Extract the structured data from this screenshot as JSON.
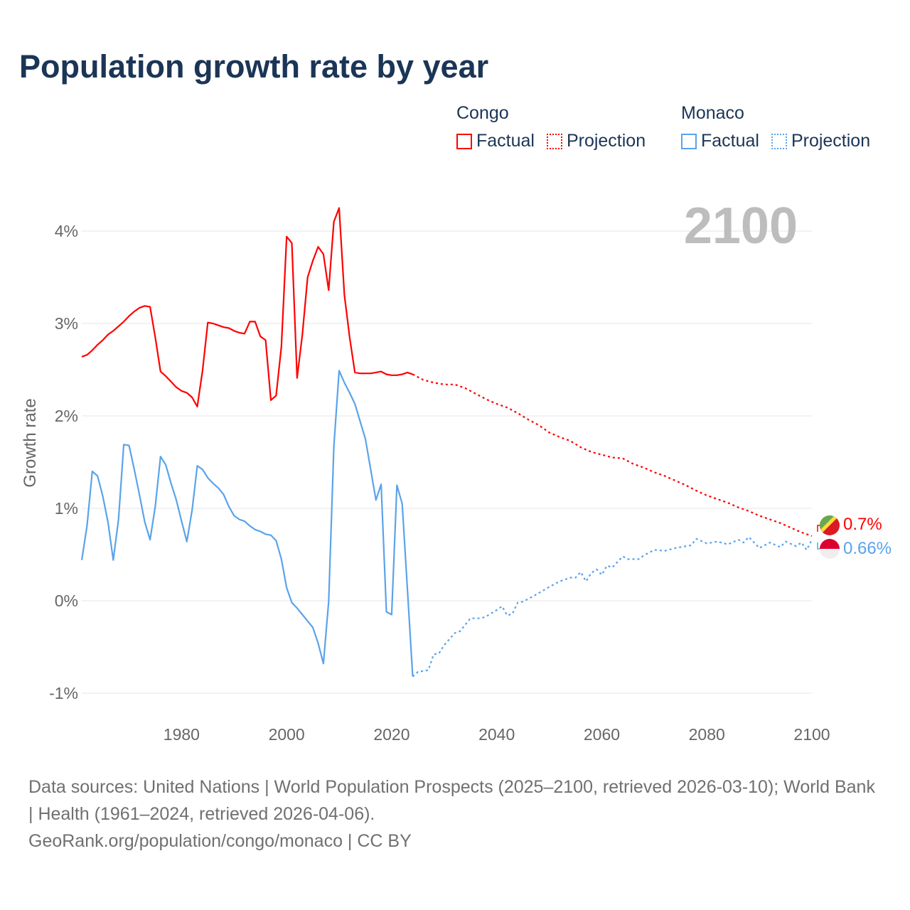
{
  "chart_data": {
    "type": "line",
    "title": "Population growth rate by year",
    "xlabel": "",
    "ylabel": "Growth rate",
    "xlim": [
      1961,
      2100
    ],
    "ylim": [
      -1,
      4.3
    ],
    "x_ticks": [
      "1980",
      "2000",
      "2020",
      "2040",
      "2060",
      "2080",
      "2100"
    ],
    "x_tick_values": [
      1980,
      2000,
      2020,
      2040,
      2060,
      2080,
      2100
    ],
    "y_ticks": [
      "-1%",
      "0%",
      "1%",
      "2%",
      "3%",
      "4%"
    ],
    "y_tick_values": [
      -1,
      0,
      1,
      2,
      3,
      4
    ],
    "grid": true,
    "legend_position": "top-right",
    "year_label": "2100",
    "series": [
      {
        "country": "Congo",
        "type": "Factual",
        "color": "#ff0000",
        "x": [
          1961,
          1962,
          1963,
          1964,
          1965,
          1966,
          1967,
          1968,
          1969,
          1970,
          1971,
          1972,
          1973,
          1974,
          1975,
          1976,
          1977,
          1978,
          1979,
          1980,
          1981,
          1982,
          1983,
          1984,
          1985,
          1986,
          1987,
          1988,
          1989,
          1990,
          1991,
          1992,
          1993,
          1994,
          1995,
          1996,
          1997,
          1998,
          1999,
          2000,
          2001,
          2002,
          2003,
          2004,
          2005,
          2006,
          2007,
          2008,
          2009,
          2010,
          2011,
          2012,
          2013,
          2014,
          2015,
          2016,
          2017,
          2018,
          2019,
          2020,
          2021,
          2022,
          2023,
          2024
        ],
        "y": [
          2.64,
          2.66,
          2.71,
          2.77,
          2.82,
          2.88,
          2.92,
          2.97,
          3.02,
          3.08,
          3.13,
          3.17,
          3.19,
          3.18,
          2.85,
          2.48,
          2.43,
          2.37,
          2.31,
          2.27,
          2.25,
          2.2,
          2.1,
          2.49,
          3.01,
          3.0,
          2.98,
          2.96,
          2.95,
          2.92,
          2.9,
          2.89,
          3.02,
          3.02,
          2.86,
          2.82,
          2.17,
          2.22,
          2.75,
          3.94,
          3.87,
          2.41,
          2.88,
          3.5,
          3.68,
          3.83,
          3.75,
          3.36,
          4.1,
          4.25,
          3.31,
          2.85,
          2.47,
          2.46,
          2.46,
          2.46,
          2.47,
          2.48,
          2.45,
          2.44,
          2.44,
          2.45,
          2.47,
          2.45
        ]
      },
      {
        "country": "Congo",
        "type": "Projection",
        "color": "#ff0000",
        "x": [
          2024,
          2026,
          2028,
          2030,
          2032,
          2034,
          2036,
          2038,
          2040,
          2042,
          2044,
          2046,
          2048,
          2050,
          2052,
          2054,
          2056,
          2058,
          2060,
          2062,
          2064,
          2066,
          2068,
          2070,
          2072,
          2074,
          2076,
          2078,
          2080,
          2082,
          2084,
          2086,
          2088,
          2090,
          2092,
          2094,
          2096,
          2098,
          2100
        ],
        "y": [
          2.45,
          2.39,
          2.36,
          2.34,
          2.34,
          2.3,
          2.24,
          2.18,
          2.13,
          2.09,
          2.03,
          1.96,
          1.9,
          1.82,
          1.77,
          1.73,
          1.66,
          1.61,
          1.58,
          1.55,
          1.54,
          1.48,
          1.44,
          1.39,
          1.35,
          1.3,
          1.25,
          1.19,
          1.14,
          1.1,
          1.06,
          1.01,
          0.97,
          0.92,
          0.88,
          0.84,
          0.79,
          0.74,
          0.7
        ]
      },
      {
        "country": "Monaco",
        "type": "Factual",
        "color": "#5aa3ea",
        "x": [
          1961,
          1962,
          1963,
          1964,
          1965,
          1966,
          1967,
          1968,
          1969,
          1970,
          1971,
          1972,
          1973,
          1974,
          1975,
          1976,
          1977,
          1978,
          1979,
          1980,
          1981,
          1982,
          1983,
          1984,
          1985,
          1986,
          1987,
          1988,
          1989,
          1990,
          1991,
          1992,
          1993,
          1994,
          1995,
          1996,
          1997,
          1998,
          1999,
          2000,
          2001,
          2002,
          2003,
          2004,
          2005,
          2006,
          2007,
          2008,
          2009,
          2010,
          2011,
          2012,
          2013,
          2014,
          2015,
          2016,
          2017,
          2018,
          2019,
          2020,
          2021,
          2022,
          2023,
          2024
        ],
        "y": [
          0.44,
          0.81,
          1.4,
          1.35,
          1.13,
          0.85,
          0.44,
          0.88,
          1.69,
          1.68,
          1.42,
          1.14,
          0.85,
          0.66,
          1.02,
          1.56,
          1.47,
          1.27,
          1.09,
          0.86,
          0.64,
          0.98,
          1.46,
          1.42,
          1.33,
          1.27,
          1.22,
          1.15,
          1.02,
          0.92,
          0.88,
          0.86,
          0.81,
          0.77,
          0.75,
          0.72,
          0.71,
          0.65,
          0.45,
          0.14,
          -0.02,
          -0.08,
          -0.15,
          -0.22,
          -0.29,
          -0.46,
          -0.68,
          -0.01,
          1.67,
          2.49,
          2.36,
          2.25,
          2.13,
          1.94,
          1.75,
          1.42,
          1.09,
          1.26,
          -0.12,
          -0.15,
          1.25,
          1.05,
          0.12,
          -0.82
        ]
      },
      {
        "country": "Monaco",
        "type": "Projection",
        "color": "#5aa3ea",
        "x": [
          2024,
          2025,
          2027,
          2028,
          2029,
          2030,
          2032,
          2033,
          2035,
          2037,
          2038,
          2040,
          2041,
          2042,
          2043,
          2044,
          2045,
          2047,
          2050,
          2052,
          2054,
          2055,
          2056,
          2057,
          2058,
          2059,
          2060,
          2061,
          2062,
          2064,
          2065,
          2067,
          2068,
          2070,
          2072,
          2074,
          2075,
          2077,
          2078,
          2080,
          2082,
          2084,
          2086,
          2087,
          2088,
          2090,
          2092,
          2094,
          2095,
          2097,
          2098,
          2099,
          2100
        ],
        "y": [
          -0.82,
          -0.77,
          -0.75,
          -0.58,
          -0.57,
          -0.48,
          -0.35,
          -0.33,
          -0.19,
          -0.19,
          -0.17,
          -0.1,
          -0.06,
          -0.16,
          -0.14,
          -0.02,
          -0.01,
          0.05,
          0.15,
          0.21,
          0.25,
          0.25,
          0.31,
          0.21,
          0.3,
          0.34,
          0.28,
          0.38,
          0.36,
          0.48,
          0.45,
          0.45,
          0.49,
          0.55,
          0.54,
          0.57,
          0.58,
          0.6,
          0.67,
          0.62,
          0.64,
          0.61,
          0.66,
          0.63,
          0.69,
          0.57,
          0.63,
          0.58,
          0.64,
          0.59,
          0.63,
          0.55,
          0.66
        ]
      }
    ],
    "end_labels": [
      {
        "country": "Congo",
        "text": "0.7%",
        "color": "#ff0000"
      },
      {
        "country": "Monaco",
        "text": "0.66%",
        "color": "#5aa3ea"
      }
    ]
  },
  "legend": {
    "groups": [
      {
        "name": "Congo",
        "factual": "Factual",
        "projection": "Projection",
        "color": "#ff0000"
      },
      {
        "name": "Monaco",
        "factual": "Factual",
        "projection": "Projection",
        "color": "#5aa3ea"
      }
    ]
  },
  "footer": {
    "sources": "Data sources: United Nations | World Population Prospects (2025–2100, retrieved 2026-03-10); World Bank | Health (1961–2024, retrieved 2026-04-06).",
    "site": "GeoRank.org/population/congo/monaco | CC BY"
  }
}
